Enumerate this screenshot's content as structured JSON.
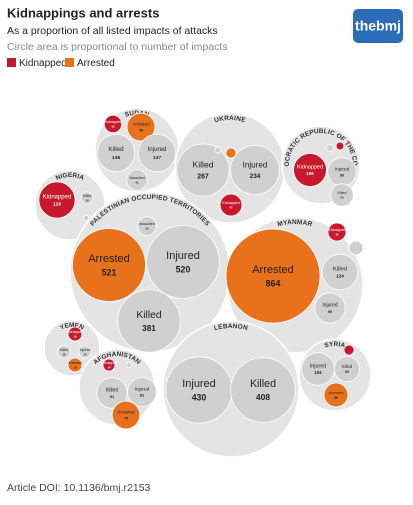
{
  "header": {
    "title": "Kidnappings and arrests",
    "subtitle": "As a proportion of all listed impacts of attacks",
    "note": "Circle area is proportional to number of impacts",
    "logo": "thebmj"
  },
  "legend": [
    {
      "name": "Kidnapped",
      "color": "#c8182c"
    },
    {
      "name": "Arrested",
      "color": "#e8711c"
    }
  ],
  "chart_data": {
    "type": "packed-bubble",
    "groups": [
      {
        "name": "SUDAN",
        "items": [
          {
            "name": "Kidnapped",
            "value": 30,
            "color": "#c8182c"
          },
          {
            "name": "Arrested",
            "value": 76,
            "color": "#e8711c"
          },
          {
            "name": "Killed",
            "value": 138,
            "color": "#d0d0d0"
          },
          {
            "name": "Injured",
            "value": 137,
            "color": "#d0d0d0"
          },
          {
            "name": "Assaulted",
            "value": 41,
            "color": "#d0d0d0"
          }
        ]
      },
      {
        "name": "UKRAINE",
        "items": [
          {
            "name": "Killed",
            "value": 267,
            "color": "#d0d0d0"
          },
          {
            "name": "Injured",
            "value": 234,
            "color": "#d0d0d0"
          },
          {
            "name": null,
            "value": 10,
            "color": "#e8711c"
          },
          {
            "name": null,
            "value": 4,
            "color": "#d0d0d0"
          },
          {
            "name": "Kidnapped",
            "value": 47,
            "color": "#c8182c"
          }
        ]
      },
      {
        "name": "DEMOCRATIC REPUBLIC OF THE CONGO",
        "items": [
          {
            "name": "Kidnapped",
            "value": 106,
            "color": "#c8182c"
          },
          {
            "name": "Injured",
            "value": 80,
            "color": "#d0d0d0"
          },
          {
            "name": "Killed",
            "value": 50,
            "color": "#d0d0d0"
          },
          {
            "name": null,
            "value": 6,
            "color": "#c8182c"
          },
          {
            "name": null,
            "value": 5,
            "color": "#d0d0d0"
          }
        ]
      },
      {
        "name": "NIGERIA",
        "items": [
          {
            "name": "Kidnapped",
            "value": 128,
            "color": "#c8182c"
          },
          {
            "name": "Killed",
            "value": 14,
            "color": "#d0d0d0"
          },
          {
            "name": null,
            "value": 3,
            "color": "#d0d0d0"
          }
        ]
      },
      {
        "name": "PALESTINIAN OCCUPIED TERRITORIES",
        "items": [
          {
            "name": "Arrested",
            "value": 521,
            "color": "#e8711c"
          },
          {
            "name": "Injured",
            "value": 520,
            "color": "#d0d0d0"
          },
          {
            "name": "Killed",
            "value": 381,
            "color": "#d0d0d0"
          },
          {
            "name": "Assaulted",
            "value": 34,
            "color": "#d0d0d0"
          }
        ]
      },
      {
        "name": "MYANMAR",
        "items": [
          {
            "name": "Arrested",
            "value": 864,
            "color": "#e8711c"
          },
          {
            "name": "Killed",
            "value": 124,
            "color": "#d0d0d0"
          },
          {
            "name": "Injured",
            "value": 90,
            "color": "#d0d0d0"
          },
          {
            "name": "Kidnapped",
            "value": 32,
            "color": "#c8182c"
          },
          {
            "name": null,
            "value": 19,
            "color": "#d0d0d0"
          }
        ]
      },
      {
        "name": "YEMEN",
        "items": [
          {
            "name": "Kidnapped",
            "value": 19,
            "color": "#c8182c"
          },
          {
            "name": "Killed",
            "value": 16,
            "color": "#d0d0d0"
          },
          {
            "name": "Injured",
            "value": 14,
            "color": "#d0d0d0"
          },
          {
            "name": "Arrested",
            "value": 19,
            "color": "#e8711c"
          }
        ]
      },
      {
        "name": "AFGHANISTAN",
        "items": [
          {
            "name": "Kidnapped",
            "value": 14,
            "color": "#c8182c"
          },
          {
            "name": "Killed",
            "value": 91,
            "color": "#d0d0d0"
          },
          {
            "name": "Injured",
            "value": 82,
            "color": "#d0d0d0"
          },
          {
            "name": "Arrested",
            "value": 75,
            "color": "#e8711c"
          },
          {
            "name": null,
            "value": 3,
            "color": "#d0d0d0"
          }
        ]
      },
      {
        "name": "LEBANON",
        "items": [
          {
            "name": "Injured",
            "value": 430,
            "color": "#d0d0d0"
          },
          {
            "name": "Killed",
            "value": 408,
            "color": "#d0d0d0"
          }
        ]
      },
      {
        "name": "SYRIA",
        "items": [
          {
            "name": "Injured",
            "value": 104,
            "color": "#d0d0d0"
          },
          {
            "name": "Killed",
            "value": 63,
            "color": "#d0d0d0"
          },
          {
            "name": "Arrested",
            "value": 56,
            "color": "#e8711c"
          },
          {
            "name": null,
            "value": 10,
            "color": "#c8182c"
          }
        ]
      }
    ]
  },
  "footer": "Article DOI: 10.1136/bmj.r2153"
}
